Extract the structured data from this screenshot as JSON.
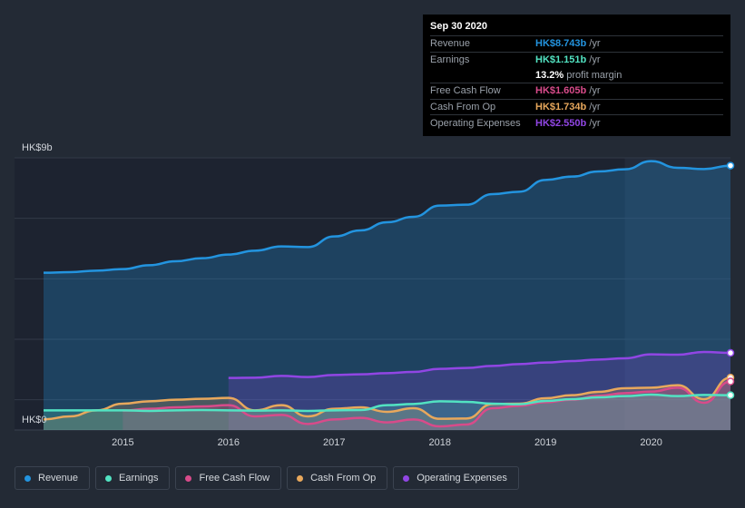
{
  "tooltip": {
    "date": "Sep 30 2020",
    "rows": {
      "revenue": {
        "label": "Revenue",
        "value": "HK$8.743b",
        "unit": "/yr"
      },
      "earnings": {
        "label": "Earnings",
        "value": "HK$1.151b",
        "unit": "/yr"
      },
      "margin": {
        "value": "13.2%",
        "text": "profit margin"
      },
      "fcf": {
        "label": "Free Cash Flow",
        "value": "HK$1.605b",
        "unit": "/yr"
      },
      "cfo": {
        "label": "Cash From Op",
        "value": "HK$1.734b",
        "unit": "/yr"
      },
      "opex": {
        "label": "Operating Expenses",
        "value": "HK$2.550b",
        "unit": "/yr"
      }
    }
  },
  "colors": {
    "revenue": "#2394df",
    "earnings": "#52e3c2",
    "fcf": "#d84b8a",
    "cfo": "#e8a85c",
    "opex": "#9146e4"
  },
  "legend": [
    {
      "key": "revenue",
      "label": "Revenue"
    },
    {
      "key": "earnings",
      "label": "Earnings"
    },
    {
      "key": "fcf",
      "label": "Free Cash Flow"
    },
    {
      "key": "cfo",
      "label": "Cash From Op"
    },
    {
      "key": "opex",
      "label": "Operating Expenses"
    }
  ],
  "chart_data": {
    "type": "area",
    "title": "",
    "ylabel_top": "HK$9b",
    "ylabel_bottom": "HK$0",
    "ylim": [
      0,
      9
    ],
    "xlim": [
      2014.25,
      2020.75
    ],
    "x_ticks": [
      2015,
      2016,
      2017,
      2018,
      2019,
      2020
    ],
    "x_tick_labels": [
      "2015",
      "2016",
      "2017",
      "2018",
      "2019",
      "2020"
    ],
    "highlight_from": 2019.75,
    "series": [
      {
        "key": "revenue",
        "name": "Revenue",
        "points": [
          [
            2014.25,
            5.2
          ],
          [
            2014.5,
            5.22
          ],
          [
            2014.75,
            5.27
          ],
          [
            2015,
            5.32
          ],
          [
            2015.25,
            5.45
          ],
          [
            2015.5,
            5.58
          ],
          [
            2015.75,
            5.68
          ],
          [
            2016,
            5.8
          ],
          [
            2016.25,
            5.93
          ],
          [
            2016.5,
            6.07
          ],
          [
            2016.75,
            6.05
          ],
          [
            2017,
            6.4
          ],
          [
            2017.25,
            6.6
          ],
          [
            2017.5,
            6.87
          ],
          [
            2017.75,
            7.05
          ],
          [
            2018,
            7.42
          ],
          [
            2018.25,
            7.45
          ],
          [
            2018.5,
            7.8
          ],
          [
            2018.75,
            7.88
          ],
          [
            2019,
            8.27
          ],
          [
            2019.25,
            8.38
          ],
          [
            2019.5,
            8.55
          ],
          [
            2019.75,
            8.62
          ],
          [
            2020,
            8.89
          ],
          [
            2020.25,
            8.67
          ],
          [
            2020.5,
            8.63
          ],
          [
            2020.75,
            8.743
          ]
        ]
      },
      {
        "key": "earnings",
        "name": "Earnings",
        "points": [
          [
            2014.25,
            0.65
          ],
          [
            2014.5,
            0.65
          ],
          [
            2014.75,
            0.65
          ],
          [
            2015,
            0.65
          ],
          [
            2015.25,
            0.63
          ],
          [
            2015.5,
            0.65
          ],
          [
            2015.75,
            0.66
          ],
          [
            2016,
            0.65
          ],
          [
            2016.25,
            0.64
          ],
          [
            2016.5,
            0.65
          ],
          [
            2016.75,
            0.63
          ],
          [
            2017,
            0.65
          ],
          [
            2017.25,
            0.66
          ],
          [
            2017.5,
            0.82
          ],
          [
            2017.75,
            0.86
          ],
          [
            2018,
            0.95
          ],
          [
            2018.25,
            0.93
          ],
          [
            2018.5,
            0.87
          ],
          [
            2018.75,
            0.85
          ],
          [
            2019,
            0.96
          ],
          [
            2019.25,
            1.02
          ],
          [
            2019.5,
            1.08
          ],
          [
            2019.75,
            1.12
          ],
          [
            2020,
            1.17
          ],
          [
            2020.25,
            1.12
          ],
          [
            2020.5,
            1.16
          ],
          [
            2020.75,
            1.151
          ]
        ]
      },
      {
        "key": "fcf",
        "name": "Free Cash Flow",
        "points": [
          [
            2015,
            0.64
          ],
          [
            2015.25,
            0.7
          ],
          [
            2015.5,
            0.75
          ],
          [
            2015.75,
            0.78
          ],
          [
            2016,
            0.82
          ],
          [
            2016.25,
            0.45
          ],
          [
            2016.5,
            0.5
          ],
          [
            2016.75,
            0.2
          ],
          [
            2017,
            0.35
          ],
          [
            2017.25,
            0.4
          ],
          [
            2017.5,
            0.25
          ],
          [
            2017.75,
            0.35
          ],
          [
            2018,
            0.12
          ],
          [
            2018.25,
            0.18
          ],
          [
            2018.5,
            0.72
          ],
          [
            2018.75,
            0.8
          ],
          [
            2019,
            0.92
          ],
          [
            2019.25,
            1.0
          ],
          [
            2019.5,
            1.13
          ],
          [
            2019.75,
            1.22
          ],
          [
            2020,
            1.27
          ],
          [
            2020.25,
            1.4
          ],
          [
            2020.5,
            0.9
          ],
          [
            2020.75,
            1.605
          ]
        ]
      },
      {
        "key": "cfo",
        "name": "Cash From Op",
        "points": [
          [
            2014.25,
            0.35
          ],
          [
            2014.5,
            0.45
          ],
          [
            2014.75,
            0.65
          ],
          [
            2015,
            0.87
          ],
          [
            2015.25,
            0.95
          ],
          [
            2015.5,
            1.0
          ],
          [
            2015.75,
            1.03
          ],
          [
            2016,
            1.06
          ],
          [
            2016.25,
            0.65
          ],
          [
            2016.5,
            0.82
          ],
          [
            2016.75,
            0.45
          ],
          [
            2017,
            0.7
          ],
          [
            2017.25,
            0.75
          ],
          [
            2017.5,
            0.6
          ],
          [
            2017.75,
            0.72
          ],
          [
            2018,
            0.37
          ],
          [
            2018.25,
            0.38
          ],
          [
            2018.5,
            0.86
          ],
          [
            2018.75,
            0.87
          ],
          [
            2019,
            1.05
          ],
          [
            2019.25,
            1.15
          ],
          [
            2019.5,
            1.26
          ],
          [
            2019.75,
            1.38
          ],
          [
            2020,
            1.4
          ],
          [
            2020.25,
            1.48
          ],
          [
            2020.5,
            1.02
          ],
          [
            2020.75,
            1.734
          ]
        ]
      },
      {
        "key": "opex",
        "name": "Operating Expenses",
        "points": [
          [
            2016,
            1.72
          ],
          [
            2016.25,
            1.73
          ],
          [
            2016.5,
            1.79
          ],
          [
            2016.75,
            1.75
          ],
          [
            2017,
            1.82
          ],
          [
            2017.25,
            1.84
          ],
          [
            2017.5,
            1.88
          ],
          [
            2017.75,
            1.92
          ],
          [
            2018,
            2.02
          ],
          [
            2018.25,
            2.05
          ],
          [
            2018.5,
            2.12
          ],
          [
            2018.75,
            2.18
          ],
          [
            2019,
            2.23
          ],
          [
            2019.25,
            2.28
          ],
          [
            2019.5,
            2.33
          ],
          [
            2019.75,
            2.37
          ],
          [
            2020,
            2.5
          ],
          [
            2020.25,
            2.49
          ],
          [
            2020.5,
            2.58
          ],
          [
            2020.75,
            2.55
          ]
        ]
      }
    ]
  }
}
